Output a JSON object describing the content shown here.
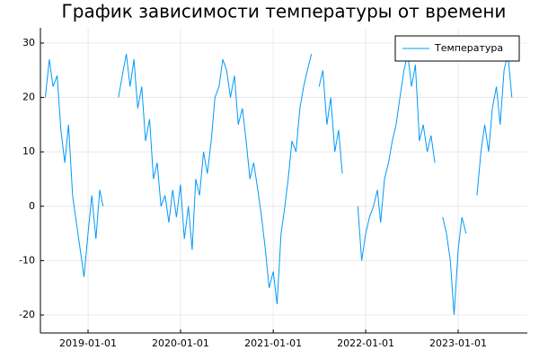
{
  "chart_data": {
    "type": "line",
    "title": "График зависимости температуры от времени",
    "x": [
      "2018-07-16",
      "2018-08-01",
      "2018-08-16",
      "2018-09-01",
      "2018-09-16",
      "2018-10-01",
      "2018-10-16",
      "2018-11-01",
      "2018-11-16",
      "2018-12-01",
      "2018-12-16",
      "2019-01-01",
      "2019-01-16",
      "2019-02-01",
      "2019-02-16",
      "2019-03-01",
      "2019-03-16",
      "2019-05-01",
      "2019-05-16",
      "2019-06-01",
      "2019-06-16",
      "2019-07-01",
      "2019-07-16",
      "2019-08-01",
      "2019-08-16",
      "2019-09-01",
      "2019-09-16",
      "2019-10-01",
      "2019-10-16",
      "2019-11-01",
      "2019-11-16",
      "2019-12-01",
      "2019-12-16",
      "2020-01-01",
      "2020-01-16",
      "2020-02-01",
      "2020-02-16",
      "2020-03-01",
      "2020-03-16",
      "2020-04-01",
      "2020-04-16",
      "2020-05-01",
      "2020-05-16",
      "2020-06-01",
      "2020-06-16",
      "2020-07-01",
      "2020-07-16",
      "2020-08-01",
      "2020-08-16",
      "2020-09-01",
      "2020-09-16",
      "2020-10-01",
      "2020-10-16",
      "2020-11-01",
      "2020-11-16",
      "2020-12-01",
      "2020-12-16",
      "2021-01-01",
      "2021-01-16",
      "2021-02-01",
      "2021-02-16",
      "2021-03-01",
      "2021-03-16",
      "2021-04-01",
      "2021-04-16",
      "2021-05-01",
      "2021-05-16",
      "2021-06-01",
      "2021-06-16",
      "2021-07-01",
      "2021-07-16",
      "2021-08-01",
      "2021-08-16",
      "2021-09-01",
      "2021-09-16",
      "2021-10-01",
      "2021-10-16",
      "2021-12-01",
      "2021-12-16",
      "2022-01-01",
      "2022-01-16",
      "2022-02-01",
      "2022-02-16",
      "2022-03-01",
      "2022-03-16",
      "2022-04-01",
      "2022-04-16",
      "2022-05-01",
      "2022-05-16",
      "2022-06-01",
      "2022-06-16",
      "2022-07-01",
      "2022-07-16",
      "2022-08-01",
      "2022-08-16",
      "2022-09-01",
      "2022-09-16",
      "2022-10-01",
      "2022-10-16",
      "2022-11-01",
      "2022-11-16",
      "2022-12-01",
      "2022-12-16",
      "2023-01-01",
      "2023-01-16",
      "2023-02-01",
      "2023-02-16",
      "2023-03-16",
      "2023-04-01",
      "2023-04-16",
      "2023-05-01",
      "2023-05-16",
      "2023-06-01",
      "2023-06-16",
      "2023-07-01",
      "2023-07-16",
      "2023-08-01"
    ],
    "series": [
      {
        "name": "Температура",
        "color": "#009af9",
        "values": [
          20,
          27,
          22,
          24,
          14,
          8,
          15,
          2,
          -3,
          -8,
          -13,
          -5,
          2,
          -6,
          3,
          0,
          null,
          20,
          24,
          28,
          22,
          27,
          18,
          22,
          12,
          16,
          5,
          8,
          0,
          2,
          -3,
          3,
          -2,
          4,
          -6,
          0,
          -8,
          5,
          2,
          10,
          6,
          12,
          20,
          22,
          27,
          25,
          20,
          24,
          15,
          18,
          12,
          5,
          8,
          3,
          -2,
          -8,
          -15,
          -12,
          -18,
          -5,
          0,
          5,
          12,
          10,
          18,
          22,
          25,
          28,
          null,
          22,
          25,
          15,
          20,
          10,
          14,
          6,
          null,
          0,
          -10,
          -5,
          -2,
          0,
          3,
          -3,
          5,
          8,
          12,
          15,
          20,
          25,
          28,
          22,
          26,
          12,
          15,
          10,
          13,
          8,
          null,
          -2,
          -5,
          -10,
          -20,
          -8,
          -2,
          -5,
          null,
          2,
          10,
          15,
          10,
          18,
          22,
          15,
          25,
          28,
          20
        ]
      }
    ],
    "xlim": [
      "2018-06-27",
      "2023-10-01"
    ],
    "xticks": [
      "2019-01-01",
      "2020-01-01",
      "2021-01-01",
      "2022-01-01",
      "2023-01-01"
    ],
    "ylim": [
      -23.3,
      32.8
    ],
    "yticks": [
      -20,
      -10,
      0,
      10,
      20,
      30
    ],
    "grid": true,
    "legend": "top-right"
  }
}
